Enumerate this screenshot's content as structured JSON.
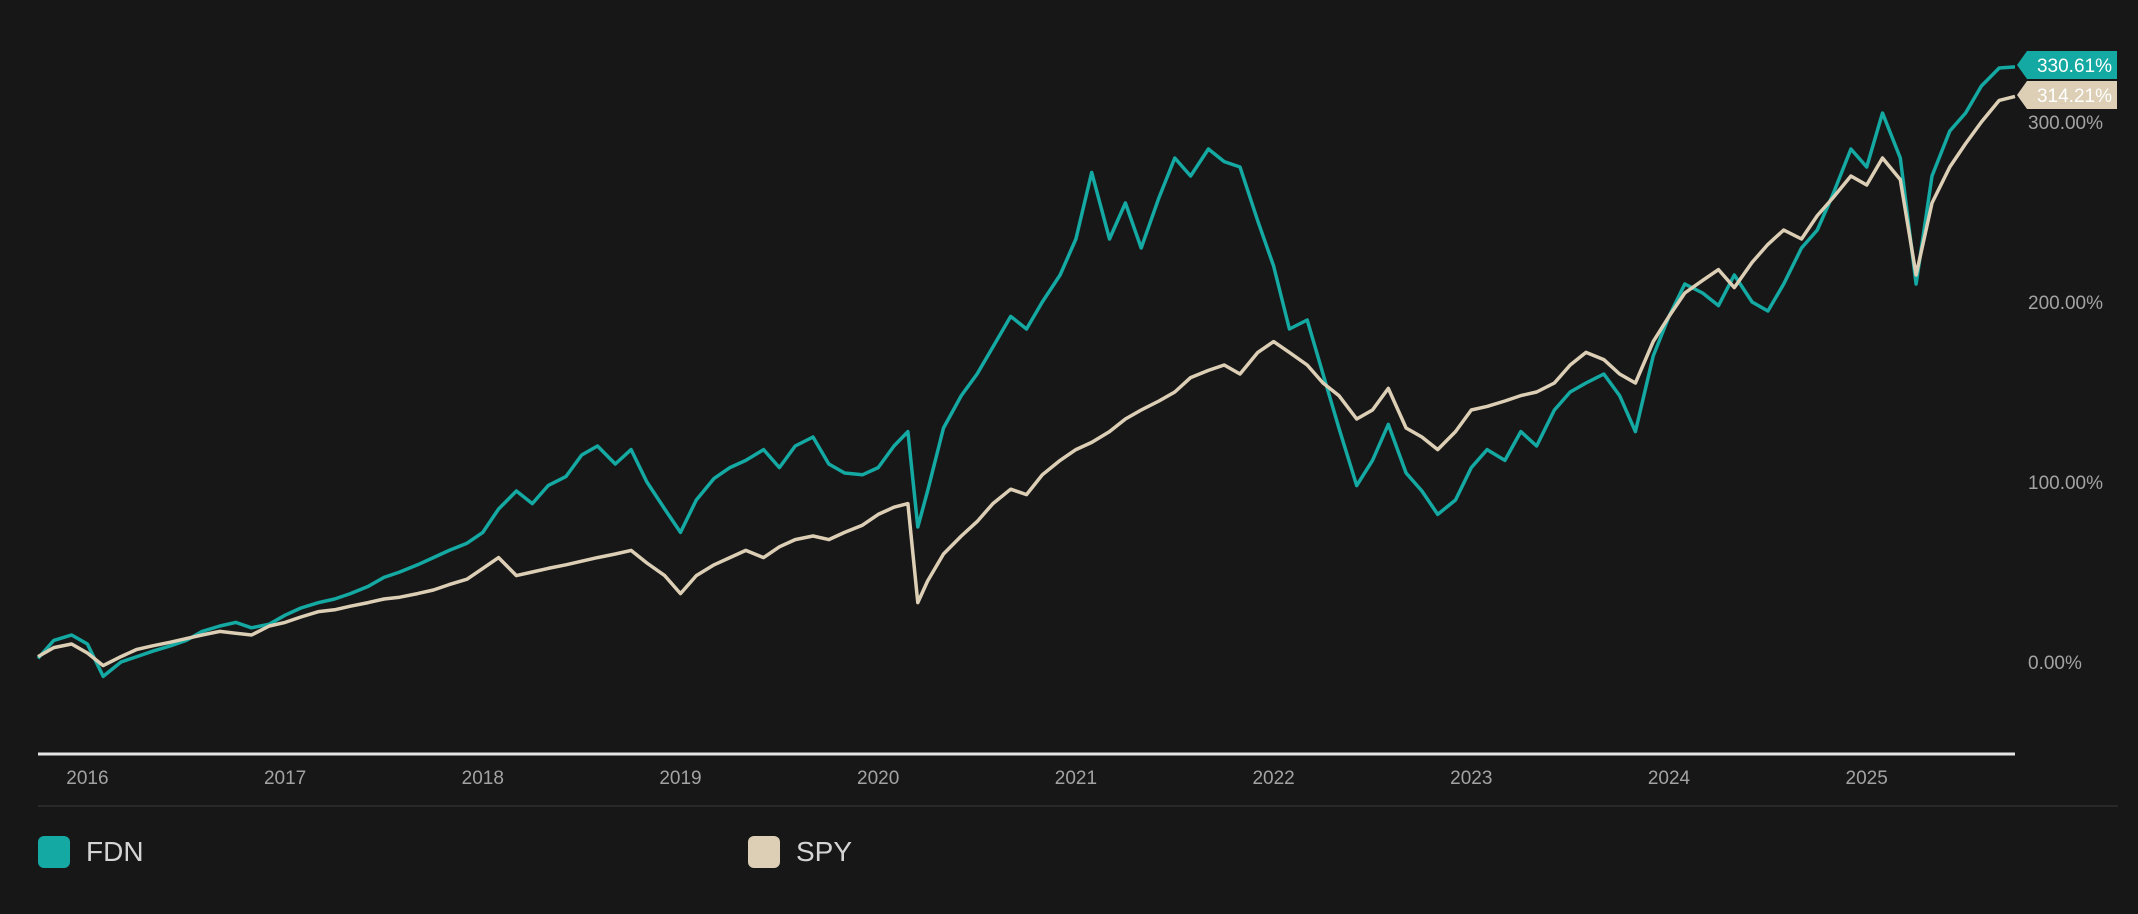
{
  "chart_data": {
    "type": "line",
    "x_ticks": [
      "2016",
      "2017",
      "2018",
      "2019",
      "2020",
      "2021",
      "2022",
      "2023",
      "2024",
      "2025"
    ],
    "y_ticks": [
      "0.00%",
      "100.00%",
      "200.00%",
      "300.00%"
    ],
    "y_tick_values": [
      0,
      100,
      200,
      300
    ],
    "xlim": [
      2015.75,
      2025.75
    ],
    "ylim": [
      -50,
      340
    ],
    "grid": false,
    "legend_position": "bottom-left",
    "series": [
      {
        "name": "FDN",
        "color": "#14a9a2",
        "end_label": "330.61%",
        "points": [
          [
            2015.75,
            2
          ],
          [
            2015.83,
            12
          ],
          [
            2015.92,
            15
          ],
          [
            2016.0,
            10
          ],
          [
            2016.08,
            -8
          ],
          [
            2016.17,
            0
          ],
          [
            2016.25,
            3
          ],
          [
            2016.33,
            6
          ],
          [
            2016.42,
            9
          ],
          [
            2016.5,
            12
          ],
          [
            2016.58,
            17
          ],
          [
            2016.67,
            20
          ],
          [
            2016.75,
            22
          ],
          [
            2016.83,
            19
          ],
          [
            2016.92,
            21
          ],
          [
            2017.0,
            26
          ],
          [
            2017.08,
            30
          ],
          [
            2017.17,
            33
          ],
          [
            2017.25,
            35
          ],
          [
            2017.33,
            38
          ],
          [
            2017.42,
            42
          ],
          [
            2017.5,
            47
          ],
          [
            2017.58,
            50
          ],
          [
            2017.67,
            54
          ],
          [
            2017.75,
            58
          ],
          [
            2017.83,
            62
          ],
          [
            2017.92,
            66
          ],
          [
            2018.0,
            72
          ],
          [
            2018.08,
            85
          ],
          [
            2018.17,
            95
          ],
          [
            2018.25,
            88
          ],
          [
            2018.33,
            98
          ],
          [
            2018.42,
            103
          ],
          [
            2018.5,
            115
          ],
          [
            2018.58,
            120
          ],
          [
            2018.67,
            110
          ],
          [
            2018.75,
            118
          ],
          [
            2018.83,
            100
          ],
          [
            2018.92,
            85
          ],
          [
            2019.0,
            72
          ],
          [
            2019.08,
            90
          ],
          [
            2019.17,
            102
          ],
          [
            2019.25,
            108
          ],
          [
            2019.33,
            112
          ],
          [
            2019.42,
            118
          ],
          [
            2019.5,
            108
          ],
          [
            2019.58,
            120
          ],
          [
            2019.67,
            125
          ],
          [
            2019.75,
            110
          ],
          [
            2019.83,
            105
          ],
          [
            2019.92,
            104
          ],
          [
            2020.0,
            108
          ],
          [
            2020.08,
            120
          ],
          [
            2020.15,
            128
          ],
          [
            2020.2,
            75
          ],
          [
            2020.25,
            95
          ],
          [
            2020.33,
            130
          ],
          [
            2020.42,
            148
          ],
          [
            2020.5,
            160
          ],
          [
            2020.58,
            175
          ],
          [
            2020.67,
            192
          ],
          [
            2020.75,
            185
          ],
          [
            2020.83,
            200
          ],
          [
            2020.92,
            215
          ],
          [
            2021.0,
            235
          ],
          [
            2021.08,
            272
          ],
          [
            2021.17,
            235
          ],
          [
            2021.25,
            255
          ],
          [
            2021.33,
            230
          ],
          [
            2021.42,
            258
          ],
          [
            2021.5,
            280
          ],
          [
            2021.58,
            270
          ],
          [
            2021.67,
            285
          ],
          [
            2021.75,
            278
          ],
          [
            2021.83,
            275
          ],
          [
            2021.92,
            245
          ],
          [
            2022.0,
            220
          ],
          [
            2022.08,
            185
          ],
          [
            2022.17,
            190
          ],
          [
            2022.25,
            160
          ],
          [
            2022.33,
            130
          ],
          [
            2022.42,
            98
          ],
          [
            2022.5,
            112
          ],
          [
            2022.58,
            132
          ],
          [
            2022.67,
            105
          ],
          [
            2022.75,
            95
          ],
          [
            2022.83,
            82
          ],
          [
            2022.92,
            90
          ],
          [
            2023.0,
            108
          ],
          [
            2023.08,
            118
          ],
          [
            2023.17,
            112
          ],
          [
            2023.25,
            128
          ],
          [
            2023.33,
            120
          ],
          [
            2023.42,
            140
          ],
          [
            2023.5,
            150
          ],
          [
            2023.58,
            155
          ],
          [
            2023.67,
            160
          ],
          [
            2023.75,
            148
          ],
          [
            2023.83,
            128
          ],
          [
            2023.92,
            170
          ],
          [
            2024.0,
            192
          ],
          [
            2024.08,
            210
          ],
          [
            2024.17,
            205
          ],
          [
            2024.25,
            198
          ],
          [
            2024.33,
            215
          ],
          [
            2024.42,
            200
          ],
          [
            2024.5,
            195
          ],
          [
            2024.58,
            210
          ],
          [
            2024.67,
            230
          ],
          [
            2024.75,
            240
          ],
          [
            2024.83,
            260
          ],
          [
            2024.92,
            285
          ],
          [
            2025.0,
            275
          ],
          [
            2025.08,
            305
          ],
          [
            2025.17,
            280
          ],
          [
            2025.25,
            210
          ],
          [
            2025.33,
            270
          ],
          [
            2025.42,
            295
          ],
          [
            2025.5,
            305
          ],
          [
            2025.58,
            320
          ],
          [
            2025.67,
            330
          ],
          [
            2025.75,
            330.61
          ]
        ]
      },
      {
        "name": "SPY",
        "color": "#dccfb5",
        "end_label": "314.21%",
        "points": [
          [
            2015.75,
            3
          ],
          [
            2015.83,
            8
          ],
          [
            2015.92,
            10
          ],
          [
            2016.0,
            5
          ],
          [
            2016.08,
            -2
          ],
          [
            2016.17,
            3
          ],
          [
            2016.25,
            7
          ],
          [
            2016.33,
            9
          ],
          [
            2016.42,
            11
          ],
          [
            2016.5,
            13
          ],
          [
            2016.58,
            15
          ],
          [
            2016.67,
            17
          ],
          [
            2016.75,
            16
          ],
          [
            2016.83,
            15
          ],
          [
            2016.92,
            20
          ],
          [
            2017.0,
            22
          ],
          [
            2017.08,
            25
          ],
          [
            2017.17,
            28
          ],
          [
            2017.25,
            29
          ],
          [
            2017.33,
            31
          ],
          [
            2017.42,
            33
          ],
          [
            2017.5,
            35
          ],
          [
            2017.58,
            36
          ],
          [
            2017.67,
            38
          ],
          [
            2017.75,
            40
          ],
          [
            2017.83,
            43
          ],
          [
            2017.92,
            46
          ],
          [
            2018.0,
            52
          ],
          [
            2018.08,
            58
          ],
          [
            2018.17,
            48
          ],
          [
            2018.25,
            50
          ],
          [
            2018.33,
            52
          ],
          [
            2018.42,
            54
          ],
          [
            2018.5,
            56
          ],
          [
            2018.58,
            58
          ],
          [
            2018.67,
            60
          ],
          [
            2018.75,
            62
          ],
          [
            2018.83,
            55
          ],
          [
            2018.92,
            48
          ],
          [
            2019.0,
            38
          ],
          [
            2019.08,
            48
          ],
          [
            2019.17,
            54
          ],
          [
            2019.25,
            58
          ],
          [
            2019.33,
            62
          ],
          [
            2019.42,
            58
          ],
          [
            2019.5,
            64
          ],
          [
            2019.58,
            68
          ],
          [
            2019.67,
            70
          ],
          [
            2019.75,
            68
          ],
          [
            2019.83,
            72
          ],
          [
            2019.92,
            76
          ],
          [
            2020.0,
            82
          ],
          [
            2020.08,
            86
          ],
          [
            2020.15,
            88
          ],
          [
            2020.2,
            33
          ],
          [
            2020.25,
            45
          ],
          [
            2020.33,
            60
          ],
          [
            2020.42,
            70
          ],
          [
            2020.5,
            78
          ],
          [
            2020.58,
            88
          ],
          [
            2020.67,
            96
          ],
          [
            2020.75,
            93
          ],
          [
            2020.83,
            104
          ],
          [
            2020.92,
            112
          ],
          [
            2021.0,
            118
          ],
          [
            2021.08,
            122
          ],
          [
            2021.17,
            128
          ],
          [
            2021.25,
            135
          ],
          [
            2021.33,
            140
          ],
          [
            2021.42,
            145
          ],
          [
            2021.5,
            150
          ],
          [
            2021.58,
            158
          ],
          [
            2021.67,
            162
          ],
          [
            2021.75,
            165
          ],
          [
            2021.83,
            160
          ],
          [
            2021.92,
            172
          ],
          [
            2022.0,
            178
          ],
          [
            2022.08,
            172
          ],
          [
            2022.17,
            165
          ],
          [
            2022.25,
            155
          ],
          [
            2022.33,
            148
          ],
          [
            2022.42,
            135
          ],
          [
            2022.5,
            140
          ],
          [
            2022.58,
            152
          ],
          [
            2022.67,
            130
          ],
          [
            2022.75,
            125
          ],
          [
            2022.83,
            118
          ],
          [
            2022.92,
            128
          ],
          [
            2023.0,
            140
          ],
          [
            2023.08,
            142
          ],
          [
            2023.17,
            145
          ],
          [
            2023.25,
            148
          ],
          [
            2023.33,
            150
          ],
          [
            2023.42,
            155
          ],
          [
            2023.5,
            165
          ],
          [
            2023.58,
            172
          ],
          [
            2023.67,
            168
          ],
          [
            2023.75,
            160
          ],
          [
            2023.83,
            155
          ],
          [
            2023.92,
            178
          ],
          [
            2024.0,
            192
          ],
          [
            2024.08,
            205
          ],
          [
            2024.17,
            212
          ],
          [
            2024.25,
            218
          ],
          [
            2024.33,
            208
          ],
          [
            2024.42,
            222
          ],
          [
            2024.5,
            232
          ],
          [
            2024.58,
            240
          ],
          [
            2024.67,
            235
          ],
          [
            2024.75,
            248
          ],
          [
            2024.83,
            258
          ],
          [
            2024.92,
            270
          ],
          [
            2025.0,
            265
          ],
          [
            2025.08,
            280
          ],
          [
            2025.17,
            268
          ],
          [
            2025.25,
            215
          ],
          [
            2025.33,
            255
          ],
          [
            2025.42,
            275
          ],
          [
            2025.5,
            288
          ],
          [
            2025.58,
            300
          ],
          [
            2025.67,
            312
          ],
          [
            2025.75,
            314.21
          ]
        ]
      }
    ]
  }
}
